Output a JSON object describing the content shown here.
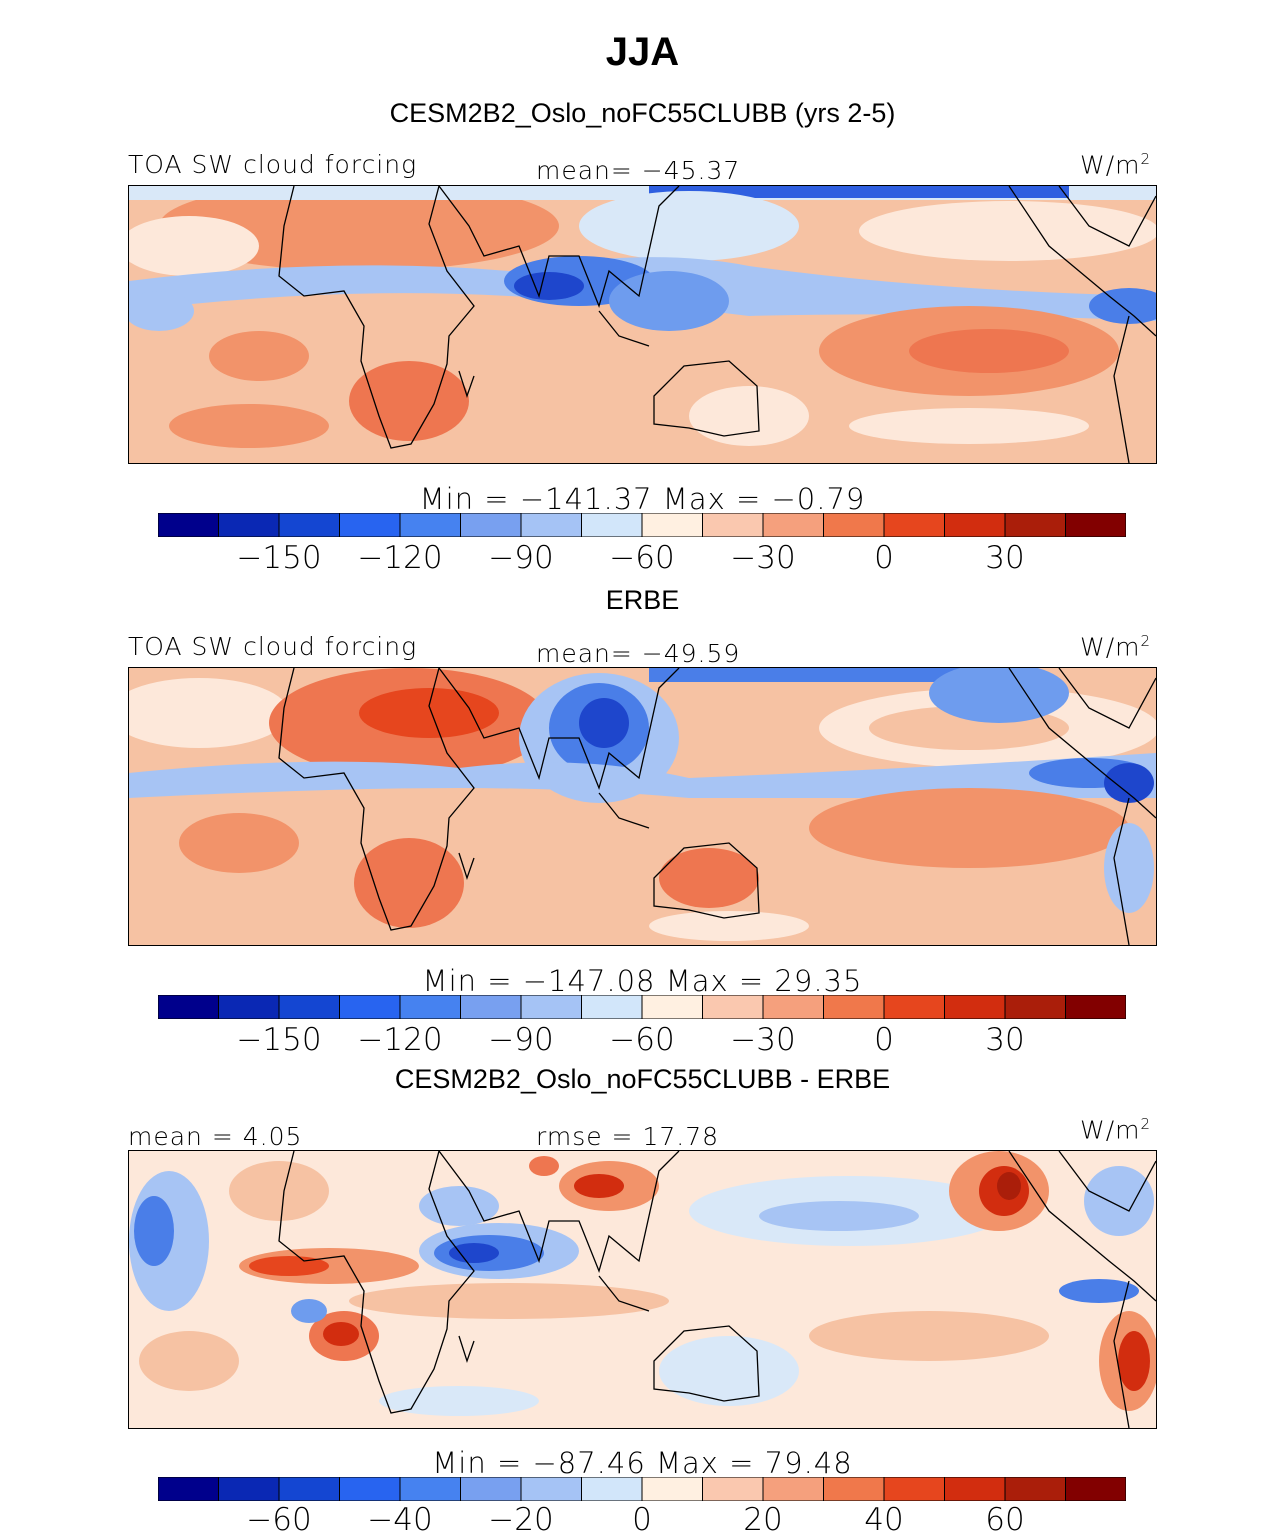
{
  "title": "JJA",
  "panels": [
    {
      "id": "model",
      "heading": "CESM2B2_Oslo_noFC55CLUBB (yrs 2-5)",
      "left_label": "TOA SW cloud forcing",
      "center_label": "mean= −45.37",
      "units": "W/m",
      "units_exp": "2",
      "minmax": "Min  = −141.37  Max  =   −0.79",
      "colorbar_ticks": [
        "−150",
        "−120",
        "−90",
        "−60",
        "−30",
        "0",
        "30"
      ],
      "colors": [
        "#00008c",
        "#0a28b4",
        "#1446d2",
        "#2864f0",
        "#4682f0",
        "#78a0f0",
        "#a5c3f5",
        "#d2e6fa",
        "#fff0e1",
        "#fac8af",
        "#f5a07d",
        "#f0784b",
        "#e6461e",
        "#d22d0f",
        "#aa1e0a",
        "#820000"
      ]
    },
    {
      "id": "obs",
      "heading": "ERBE",
      "left_label": "TOA SW cloud forcing",
      "center_label": "mean= −49.59",
      "units": "W/m",
      "units_exp": "2",
      "minmax": "Min  = −147.08  Max  =   29.35",
      "colorbar_ticks": [
        "−150",
        "−120",
        "−90",
        "−60",
        "−30",
        "0",
        "30"
      ],
      "colors": [
        "#00008c",
        "#0a28b4",
        "#1446d2",
        "#2864f0",
        "#4682f0",
        "#78a0f0",
        "#a5c3f5",
        "#d2e6fa",
        "#fff0e1",
        "#fac8af",
        "#f5a07d",
        "#f0784b",
        "#e6461e",
        "#d22d0f",
        "#aa1e0a",
        "#820000"
      ]
    },
    {
      "id": "diff",
      "heading": "CESM2B2_Oslo_noFC55CLUBB - ERBE",
      "left_label": "mean =    4.05",
      "center_label": "rmse =   17.78",
      "units": "W/m",
      "units_exp": "2",
      "minmax": "Min  = −87.46  Max  =   79.48",
      "colorbar_ticks": [
        "−60",
        "−40",
        "−20",
        "0",
        "20",
        "40",
        "60"
      ],
      "colors": [
        "#00008c",
        "#0a28b4",
        "#1446d2",
        "#2864f0",
        "#4682f0",
        "#78a0f0",
        "#a5c3f5",
        "#d2e6fa",
        "#fff0e1",
        "#fac8af",
        "#f5a07d",
        "#f0784b",
        "#e6461e",
        "#d22d0f",
        "#aa1e0a",
        "#820000"
      ]
    }
  ],
  "chart_data": [
    {
      "type": "heatmap",
      "title": "CESM2B2_Oslo_noFC55CLUBB (yrs 2-5)",
      "variable": "TOA SW cloud forcing",
      "units": "W/m2",
      "mean": -45.37,
      "min": -141.37,
      "max": -0.79,
      "colorbar_levels": [
        -165,
        -150,
        -135,
        -120,
        -105,
        -90,
        -75,
        -60,
        -45,
        -30,
        -15,
        0,
        15,
        30,
        45
      ]
    },
    {
      "type": "heatmap",
      "title": "ERBE",
      "variable": "TOA SW cloud forcing",
      "units": "W/m2",
      "mean": -49.59,
      "min": -147.08,
      "max": 29.35,
      "colorbar_levels": [
        -165,
        -150,
        -135,
        -120,
        -105,
        -90,
        -75,
        -60,
        -45,
        -30,
        -15,
        0,
        15,
        30,
        45
      ]
    },
    {
      "type": "heatmap",
      "title": "CESM2B2_Oslo_noFC55CLUBB - ERBE",
      "units": "W/m2",
      "mean": 4.05,
      "rmse": 17.78,
      "min": -87.46,
      "max": 79.48,
      "colorbar_levels": [
        -70,
        -60,
        -50,
        -40,
        -30,
        -20,
        -10,
        0,
        10,
        20,
        30,
        40,
        50,
        60,
        70
      ]
    }
  ]
}
